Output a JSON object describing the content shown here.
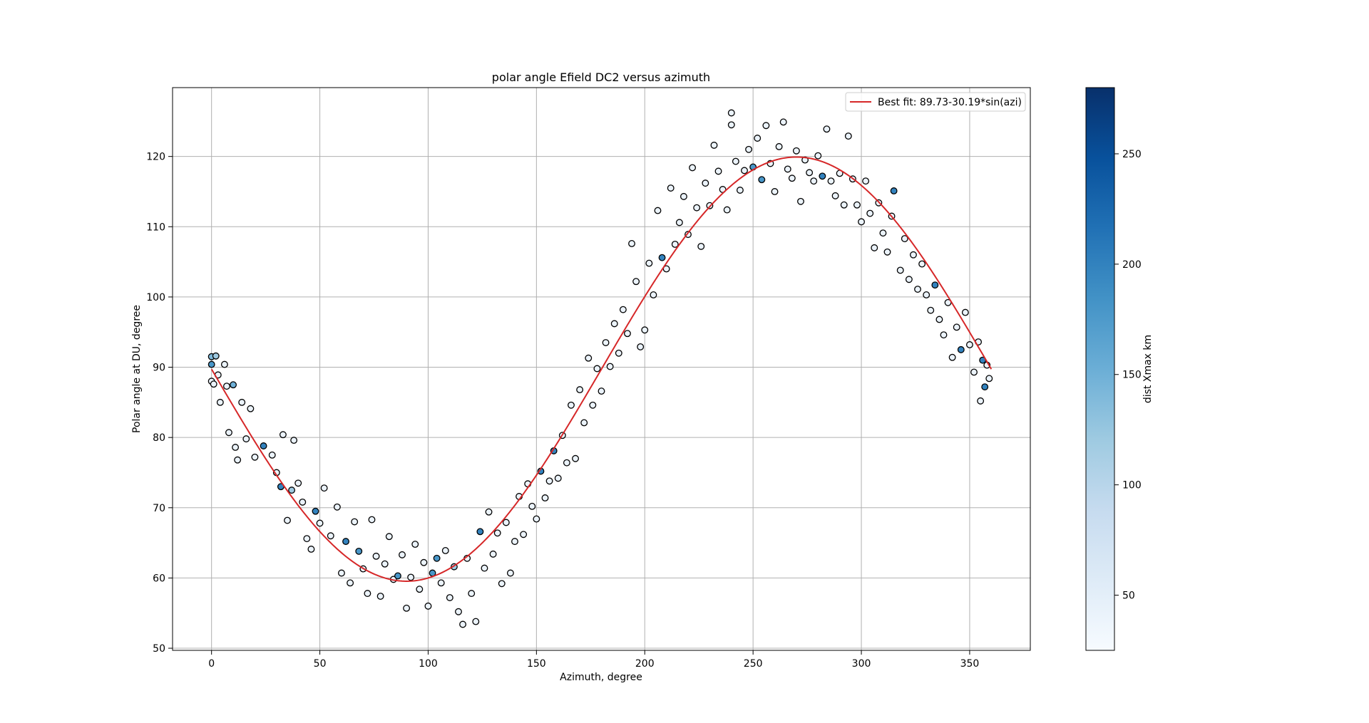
{
  "chart_data": {
    "type": "scatter",
    "title": "polar angle Efield DC2 versus azimuth",
    "xlabel": "Azimuth, degree",
    "ylabel": "Polar angle at DU, degree",
    "xlim": [
      -18,
      378
    ],
    "ylim": [
      49.7,
      129.8
    ],
    "xticks": [
      0,
      50,
      100,
      150,
      200,
      250,
      300,
      350
    ],
    "yticks": [
      50,
      60,
      70,
      80,
      90,
      100,
      110,
      120
    ],
    "grid": true,
    "legend": {
      "placement": "top-right",
      "entries": [
        {
          "label": "Best fit: 89.73-30.19*sin(azi)",
          "color": "#d62728"
        }
      ]
    },
    "fit_line": {
      "label": "Best fit: 89.73-30.19*sin(azi)",
      "intercept": 89.73,
      "amplitude": -30.19,
      "color": "#d62728"
    },
    "scatter_style": {
      "marker": "circle",
      "edgecolor": "#000000",
      "colormap": "Blues"
    },
    "colorbar": {
      "label": "dist Xmax km",
      "range": [
        25,
        280
      ],
      "ticks": [
        50,
        100,
        150,
        200,
        250
      ]
    },
    "series": [
      {
        "points": [
          [
            0,
            91.5,
            140
          ],
          [
            0,
            90.4,
            180
          ],
          [
            0,
            88.0,
            40
          ],
          [
            1,
            87.6,
            40
          ],
          [
            2,
            91.6,
            120
          ],
          [
            3,
            88.9,
            40
          ],
          [
            4,
            85.0,
            40
          ],
          [
            6,
            90.4,
            40
          ],
          [
            7,
            87.3,
            40
          ],
          [
            8,
            80.7,
            40
          ],
          [
            10,
            87.5,
            150
          ],
          [
            12,
            76.8,
            40
          ],
          [
            11,
            78.6,
            40
          ],
          [
            14,
            85.0,
            40
          ],
          [
            16,
            79.8,
            40
          ],
          [
            18,
            84.1,
            40
          ],
          [
            20,
            77.2,
            40
          ],
          [
            24,
            78.8,
            200
          ],
          [
            28,
            77.5,
            40
          ],
          [
            30,
            75.0,
            40
          ],
          [
            32,
            73.0,
            200
          ],
          [
            33,
            80.4,
            40
          ],
          [
            35,
            68.2,
            40
          ],
          [
            37,
            72.5,
            120
          ],
          [
            38,
            79.6,
            40
          ],
          [
            40,
            73.5,
            40
          ],
          [
            42,
            70.8,
            40
          ],
          [
            44,
            65.6,
            40
          ],
          [
            46,
            64.1,
            40
          ],
          [
            48,
            69.5,
            200
          ],
          [
            50,
            67.8,
            40
          ],
          [
            52,
            72.8,
            40
          ],
          [
            55,
            66.0,
            40
          ],
          [
            58,
            70.1,
            40
          ],
          [
            60,
            60.7,
            40
          ],
          [
            62,
            65.2,
            200
          ],
          [
            64,
            59.3,
            40
          ],
          [
            66,
            68.0,
            40
          ],
          [
            68,
            63.8,
            180
          ],
          [
            70,
            61.3,
            40
          ],
          [
            72,
            57.8,
            40
          ],
          [
            74,
            68.3,
            40
          ],
          [
            76,
            63.1,
            40
          ],
          [
            78,
            57.4,
            40
          ],
          [
            80,
            62.0,
            40
          ],
          [
            82,
            65.9,
            40
          ],
          [
            84,
            59.8,
            40
          ],
          [
            86,
            60.3,
            180
          ],
          [
            88,
            63.3,
            40
          ],
          [
            90,
            55.7,
            40
          ],
          [
            92,
            60.1,
            40
          ],
          [
            94,
            64.8,
            40
          ],
          [
            96,
            58.4,
            40
          ],
          [
            98,
            62.2,
            40
          ],
          [
            100,
            56.0,
            40
          ],
          [
            102,
            60.7,
            180
          ],
          [
            104,
            62.8,
            180
          ],
          [
            106,
            59.3,
            40
          ],
          [
            108,
            63.9,
            40
          ],
          [
            110,
            57.2,
            40
          ],
          [
            112,
            61.6,
            120
          ],
          [
            114,
            55.2,
            40
          ],
          [
            116,
            53.4,
            40
          ],
          [
            118,
            62.8,
            40
          ],
          [
            120,
            57.8,
            40
          ],
          [
            122,
            53.8,
            40
          ],
          [
            124,
            66.6,
            200
          ],
          [
            126,
            61.4,
            40
          ],
          [
            128,
            69.4,
            40
          ],
          [
            130,
            63.4,
            40
          ],
          [
            132,
            66.4,
            40
          ],
          [
            134,
            59.2,
            40
          ],
          [
            136,
            67.9,
            40
          ],
          [
            138,
            60.7,
            40
          ],
          [
            140,
            65.2,
            40
          ],
          [
            142,
            71.6,
            40
          ],
          [
            144,
            66.2,
            40
          ],
          [
            146,
            73.4,
            40
          ],
          [
            148,
            70.2,
            40
          ],
          [
            150,
            68.4,
            40
          ],
          [
            152,
            75.2,
            200
          ],
          [
            154,
            71.4,
            40
          ],
          [
            156,
            73.8,
            40
          ],
          [
            158,
            78.1,
            200
          ],
          [
            160,
            74.2,
            40
          ],
          [
            162,
            80.3,
            40
          ],
          [
            164,
            76.4,
            40
          ],
          [
            166,
            84.6,
            40
          ],
          [
            168,
            77.0,
            40
          ],
          [
            170,
            86.8,
            40
          ],
          [
            172,
            82.1,
            40
          ],
          [
            174,
            91.3,
            40
          ],
          [
            176,
            84.6,
            40
          ],
          [
            178,
            89.8,
            40
          ],
          [
            180,
            86.6,
            40
          ],
          [
            182,
            93.5,
            40
          ],
          [
            184,
            90.1,
            40
          ],
          [
            186,
            96.2,
            40
          ],
          [
            188,
            92.0,
            40
          ],
          [
            190,
            98.2,
            40
          ],
          [
            192,
            94.8,
            40
          ],
          [
            194,
            107.6,
            40
          ],
          [
            196,
            102.2,
            40
          ],
          [
            198,
            92.9,
            40
          ],
          [
            200,
            95.3,
            40
          ],
          [
            202,
            104.8,
            40
          ],
          [
            204,
            100.3,
            40
          ],
          [
            206,
            112.3,
            40
          ],
          [
            208,
            105.6,
            200
          ],
          [
            210,
            104.0,
            40
          ],
          [
            212,
            115.5,
            40
          ],
          [
            214,
            107.5,
            40
          ],
          [
            216,
            110.6,
            40
          ],
          [
            218,
            114.3,
            40
          ],
          [
            220,
            108.9,
            40
          ],
          [
            222,
            118.4,
            40
          ],
          [
            224,
            112.7,
            40
          ],
          [
            226,
            107.2,
            40
          ],
          [
            228,
            116.2,
            40
          ],
          [
            230,
            113.0,
            40
          ],
          [
            232,
            121.6,
            40
          ],
          [
            234,
            117.9,
            40
          ],
          [
            236,
            115.3,
            40
          ],
          [
            238,
            112.4,
            40
          ],
          [
            240,
            126.2,
            40
          ],
          [
            240,
            124.5,
            40
          ],
          [
            242,
            119.3,
            40
          ],
          [
            244,
            115.2,
            40
          ],
          [
            246,
            118.0,
            40
          ],
          [
            248,
            121.0,
            40
          ],
          [
            250,
            118.5,
            180
          ],
          [
            252,
            122.6,
            40
          ],
          [
            254,
            116.7,
            180
          ],
          [
            256,
            124.4,
            40
          ],
          [
            258,
            119.0,
            40
          ],
          [
            260,
            115.0,
            40
          ],
          [
            262,
            121.4,
            40
          ],
          [
            264,
            124.9,
            40
          ],
          [
            266,
            118.2,
            40
          ],
          [
            268,
            116.9,
            40
          ],
          [
            270,
            120.8,
            40
          ],
          [
            272,
            113.6,
            40
          ],
          [
            274,
            119.5,
            40
          ],
          [
            276,
            117.7,
            40
          ],
          [
            278,
            116.5,
            40
          ],
          [
            280,
            120.1,
            40
          ],
          [
            282,
            117.2,
            200
          ],
          [
            284,
            123.9,
            40
          ],
          [
            286,
            116.5,
            40
          ],
          [
            288,
            114.4,
            40
          ],
          [
            290,
            117.6,
            40
          ],
          [
            292,
            113.1,
            40
          ],
          [
            294,
            122.9,
            40
          ],
          [
            296,
            116.8,
            40
          ],
          [
            298,
            113.1,
            40
          ],
          [
            300,
            110.7,
            40
          ],
          [
            302,
            116.5,
            40
          ],
          [
            304,
            111.9,
            40
          ],
          [
            306,
            107.0,
            40
          ],
          [
            308,
            113.4,
            40
          ],
          [
            310,
            109.1,
            40
          ],
          [
            312,
            106.4,
            40
          ],
          [
            314,
            111.5,
            40
          ],
          [
            315,
            115.1,
            200
          ],
          [
            318,
            103.8,
            40
          ],
          [
            320,
            108.3,
            40
          ],
          [
            322,
            102.5,
            40
          ],
          [
            324,
            106.0,
            40
          ],
          [
            326,
            101.1,
            40
          ],
          [
            328,
            104.7,
            40
          ],
          [
            330,
            100.3,
            40
          ],
          [
            332,
            98.1,
            40
          ],
          [
            334,
            101.7,
            200
          ],
          [
            336,
            96.8,
            40
          ],
          [
            338,
            94.6,
            40
          ],
          [
            340,
            99.2,
            40
          ],
          [
            342,
            91.4,
            40
          ],
          [
            344,
            95.7,
            40
          ],
          [
            346,
            92.5,
            200
          ],
          [
            348,
            97.8,
            40
          ],
          [
            350,
            93.2,
            40
          ],
          [
            352,
            89.3,
            40
          ],
          [
            354,
            93.6,
            40
          ],
          [
            355,
            85.2,
            40
          ],
          [
            356,
            91.0,
            200
          ],
          [
            357,
            87.2,
            200
          ],
          [
            358,
            90.3,
            40
          ],
          [
            359,
            88.4,
            40
          ]
        ]
      }
    ]
  }
}
